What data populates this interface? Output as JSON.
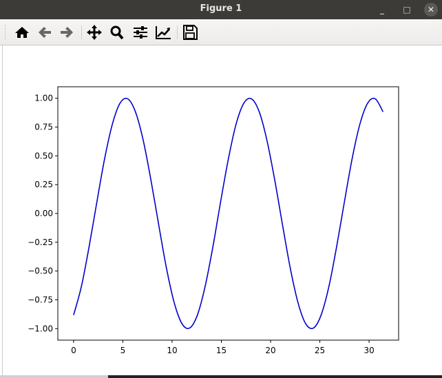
{
  "window": {
    "title": "Figure 1",
    "minimize_icon": "minimize-icon",
    "maximize_icon": "maximize-icon",
    "close_icon": "close-icon"
  },
  "toolbar": {
    "buttons": [
      {
        "name": "home",
        "icon": "home-icon"
      },
      {
        "name": "back",
        "icon": "arrow-left-icon"
      },
      {
        "name": "forward",
        "icon": "arrow-right-icon"
      },
      {
        "name": "pan",
        "icon": "move-icon"
      },
      {
        "name": "zoom",
        "icon": "magnifier-icon"
      },
      {
        "name": "subplots",
        "icon": "sliders-icon"
      },
      {
        "name": "edit-axis",
        "icon": "line-chart-icon"
      },
      {
        "name": "save",
        "icon": "floppy-disk-icon"
      }
    ]
  },
  "chart_data": {
    "type": "line",
    "title": "",
    "xlabel": "",
    "ylabel": "",
    "xlim": [
      -1.6,
      33.0
    ],
    "ylim": [
      -1.1,
      1.1
    ],
    "grid": false,
    "xticks": [
      "0",
      "5",
      "10",
      "15",
      "20",
      "25",
      "30"
    ],
    "yticks": [
      "1.00",
      "0.75",
      "0.50",
      "0.25",
      "0.00",
      "−0.25",
      "−0.50",
      "−0.75",
      "−1.00"
    ],
    "color": "#0000cc",
    "x": [
      0,
      0.79,
      1.57,
      2.36,
      3.14,
      3.93,
      4.71,
      5.5,
      6.28,
      7.07,
      7.85,
      8.64,
      9.42,
      10.21,
      11.0,
      11.78,
      12.57,
      13.35,
      14.14,
      14.92,
      15.71,
      16.49,
      17.28,
      18.06,
      18.85,
      19.63,
      20.42,
      21.21,
      21.99,
      22.78,
      23.56,
      24.35,
      25.13,
      25.92,
      26.7,
      27.49,
      28.27,
      29.06,
      29.85,
      30.63,
      31.42
    ],
    "y": [
      -0.882,
      -0.635,
      -0.291,
      0.098,
      0.471,
      0.773,
      0.957,
      0.995,
      0.882,
      0.635,
      0.291,
      -0.098,
      -0.471,
      -0.773,
      -0.957,
      -0.995,
      -0.882,
      -0.635,
      -0.291,
      0.098,
      0.471,
      0.773,
      0.957,
      0.995,
      0.882,
      0.635,
      0.291,
      -0.098,
      -0.471,
      -0.773,
      -0.957,
      -0.995,
      -0.882,
      -0.635,
      -0.291,
      0.098,
      0.471,
      0.773,
      0.957,
      0.995,
      0.882
    ]
  }
}
